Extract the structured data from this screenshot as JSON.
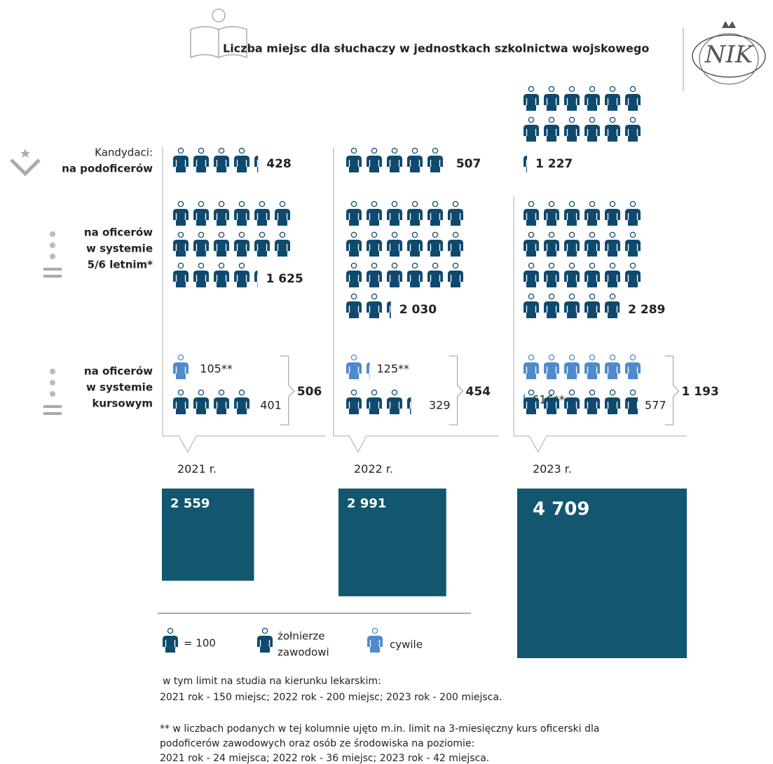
{
  "header": {
    "title": "Liczba miejsc dla słuchaczy w jednostkach szkolnictwa wojskowego",
    "logo": "NIK"
  },
  "row_labels": {
    "intro": "Kandydaci:",
    "podoficerow": "na podoficerów",
    "oficerow": [
      "na oficerów",
      "w systemie",
      "5/6 letnim*"
    ],
    "kursowe": [
      "na oficerów",
      "w systemie",
      "kursowym"
    ]
  },
  "colors": {
    "zawodowi": "#0f4a6e",
    "cywile": "#4f8bcc",
    "total": "#12566f"
  },
  "columns": [
    {
      "year": "2021 r.",
      "podoficerow": 428,
      "oficerow": {
        "value": 1625,
        "label": "1 625"
      },
      "kurs_cywile": {
        "value": 105,
        "label": "105**"
      },
      "kurs_zawodowi": 401,
      "kurs_razem": 506,
      "razem": {
        "value": 2559,
        "label": "2 559"
      }
    },
    {
      "year": "2022 r.",
      "podoficerow": 507,
      "oficerow": {
        "value": 2030,
        "label": "2 030"
      },
      "kurs_cywile": {
        "value": 125,
        "label": "125**"
      },
      "kurs_zawodowi": 329,
      "kurs_razem": 454,
      "razem": {
        "value": 2991,
        "label": "2 991"
      }
    },
    {
      "year": "2023 r.",
      "podoficerow": {
        "value": 1227,
        "label": "1 227"
      },
      "oficerow": {
        "value": 2289,
        "label": "2 289"
      },
      "kurs_cywile": {
        "value": 616,
        "label": "616**"
      },
      "kurs_zawodowi": 577,
      "kurs_razem": {
        "value": 1193,
        "label": "1 193"
      },
      "razem": {
        "value": 4709,
        "label": "4 709"
      }
    }
  ],
  "legend": {
    "unit": {
      "value": 100,
      "label": "= 100"
    },
    "zawodowi": [
      "żołnierze",
      "zawodowi"
    ],
    "cywile": "cywile"
  },
  "notes": [
    "w tym limit na studia na kierunku lekarskim:",
    "2021 rok - 150 miejsc; 2022 rok - 200 miejsc; 2023 rok - 200 miejsca.",
    "** w liczbach podanych w tej kolumnie ujęto m.in. limit na 3-miesięczny kurs oficerski dla",
    "podoficerów  zawodowych oraz osób ze środowiska na poziomie:",
    "2021 rok - 24 miejsca; 2022 rok - 36 miejsc; 2023 rok - 42 miejsca."
  ]
}
